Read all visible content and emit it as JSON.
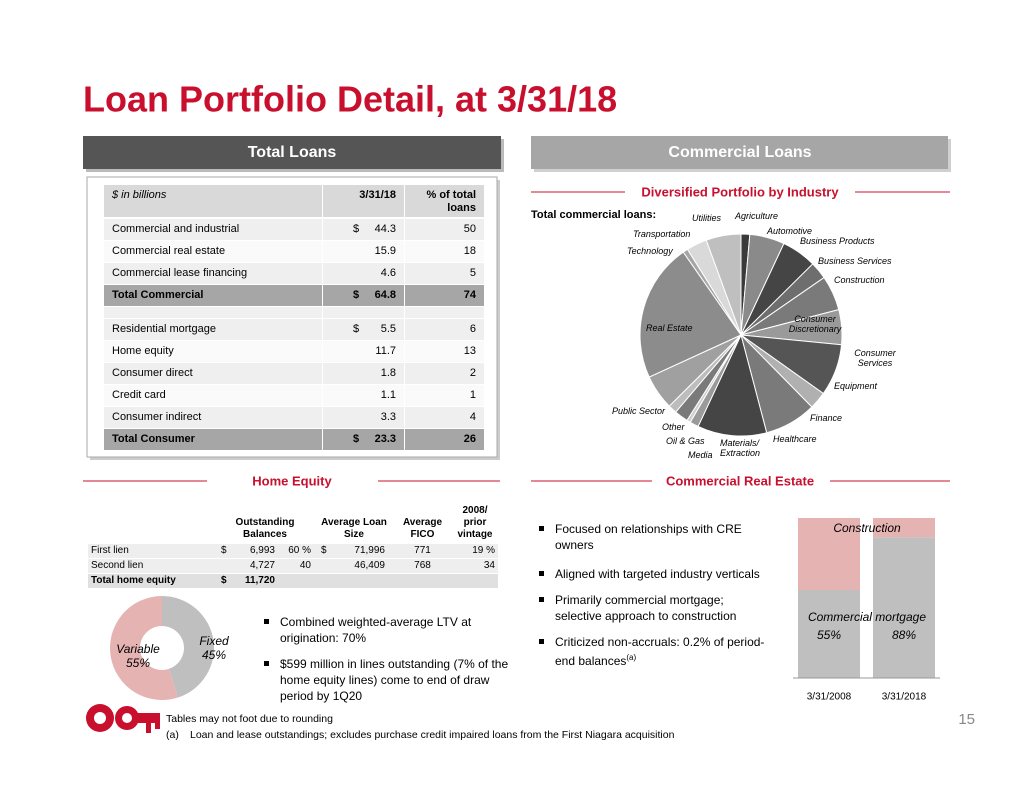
{
  "title": "Loan Portfolio Detail, at 3/31/18",
  "total_loans": {
    "header": "Total Loans",
    "columns": [
      "$ in billions",
      "3/31/18",
      "% of total loans"
    ],
    "rows": [
      {
        "label": "Commercial and industrial",
        "currency": "$",
        "amount": 44.3,
        "percent": 50
      },
      {
        "label": "Commercial real estate",
        "amount": 15.9,
        "percent": 18
      },
      {
        "label": "Commercial lease financing",
        "amount": 4.6,
        "percent": 5
      },
      {
        "label": "Total Commercial",
        "currency": "$",
        "amount": 64.8,
        "percent": 74,
        "total": true
      },
      {
        "label": "Residential mortgage",
        "currency": "$",
        "amount": 5.5,
        "percent": 6
      },
      {
        "label": "Home equity",
        "amount": 11.7,
        "percent": 13
      },
      {
        "label": "Consumer direct",
        "amount": 1.8,
        "percent": 2
      },
      {
        "label": "Credit card",
        "amount": 1.1,
        "percent": 1
      },
      {
        "label": "Consumer indirect",
        "amount": 3.3,
        "percent": 4
      },
      {
        "label": "Total Consumer",
        "currency": "$",
        "amount": 23.3,
        "percent": 26,
        "total": true
      }
    ]
  },
  "commercial_loans": {
    "header": "Commercial Loans",
    "subtitle": "Diversified Portfolio by Industry",
    "label": "Total commercial loans:"
  },
  "home_equity": {
    "header": "Home Equity",
    "columns": [
      "Outstanding Balances",
      "Average Loan Size",
      "Average FICO",
      "2008/ prior vintage"
    ],
    "rows": [
      {
        "label": "First lien",
        "currency": "$",
        "balance": "6,993",
        "balance_share": "60 %",
        "size_currency": "$",
        "loan_size": "71,996",
        "fico": 771,
        "vintage": "19 %"
      },
      {
        "label": "Second lien",
        "balance": "4,727",
        "balance_share": "40",
        "loan_size": "46,409",
        "fico": 768,
        "vintage": "34"
      },
      {
        "label": "Total home equity",
        "currency": "$",
        "balance": "11,720",
        "total": true
      }
    ],
    "bullets": [
      "Combined weighted-average LTV at origination: 70%",
      "$599 million in lines outstanding (7% of the home equity lines) come to end of draw period by 1Q20"
    ]
  },
  "commercial_real_estate": {
    "header": "Commercial Real Estate",
    "bullets": [
      {
        "text": "Focused on relationships with CRE owners"
      },
      {
        "text": "Aligned with targeted industry verticals"
      },
      {
        "text": "Primarily commercial mortgage; selective approach to construction"
      },
      {
        "text": "Criticized non-accruals: 0.2% of period-end balances",
        "note": "(a)"
      }
    ]
  },
  "footer": {
    "note": "Tables may not foot due to rounding",
    "footnotes": [
      {
        "marker": "(a)",
        "text": "Loan and lease outstandings; excludes purchase credit impaired loans from the First Niagara acquisition"
      }
    ]
  },
  "page_number": 15,
  "chart_data": [
    {
      "type": "pie",
      "categories": [
        "Agriculture",
        "Automotive",
        "Business Products",
        "Business Services",
        "Construction",
        "Consumer Discretionary",
        "Consumer Services",
        "Equipment",
        "Finance",
        "Healthcare",
        "Materials/ Extraction",
        "Media",
        "Oil & Gas",
        "Other",
        "Public Sector",
        "Real Estate",
        "Technology",
        "Transportation",
        "Utilities"
      ],
      "values": [
        1.4,
        5.6,
        5.6,
        2.8,
        5.6,
        5.6,
        8.3,
        2.8,
        8.3,
        11.1,
        1.4,
        0.6,
        2.2,
        1.4,
        5.6,
        22.2,
        0.8,
        3.3,
        5.6
      ],
      "colors": [
        "#3a3a3a",
        "#8a8a8a",
        "#454545",
        "#6e6e6e",
        "#7a7a7a",
        "#9a9a9a",
        "#555555",
        "#b0b0b0",
        "#7a7a7a",
        "#454545",
        "#9a9a9a",
        "#d0d0d0",
        "#7a7a7a",
        "#bdbdbd",
        "#a0a0a0",
        "#8c8c8c",
        "#a6a6a6",
        "#d9d9d9",
        "#bfbfbf"
      ]
    },
    {
      "type": "donut",
      "categories": [
        "Fixed",
        "Variable"
      ],
      "values": [
        45,
        55
      ],
      "value_labels": [
        "45%",
        "55%"
      ],
      "colors": [
        "#bfbfbf",
        "#e6b3b3"
      ]
    },
    {
      "type": "stacked_bar",
      "categories": [
        "3/31/2008",
        "3/31/2018"
      ],
      "ylim": [
        0,
        100
      ],
      "series": [
        {
          "name": "Commercial mortgage",
          "color": "#bfbfbf",
          "values": [
            55,
            88
          ],
          "value_labels": [
            "55%",
            "88%"
          ]
        },
        {
          "name": "Construction",
          "color": "#e6b3b3",
          "values": [
            45,
            12
          ]
        }
      ]
    }
  ]
}
